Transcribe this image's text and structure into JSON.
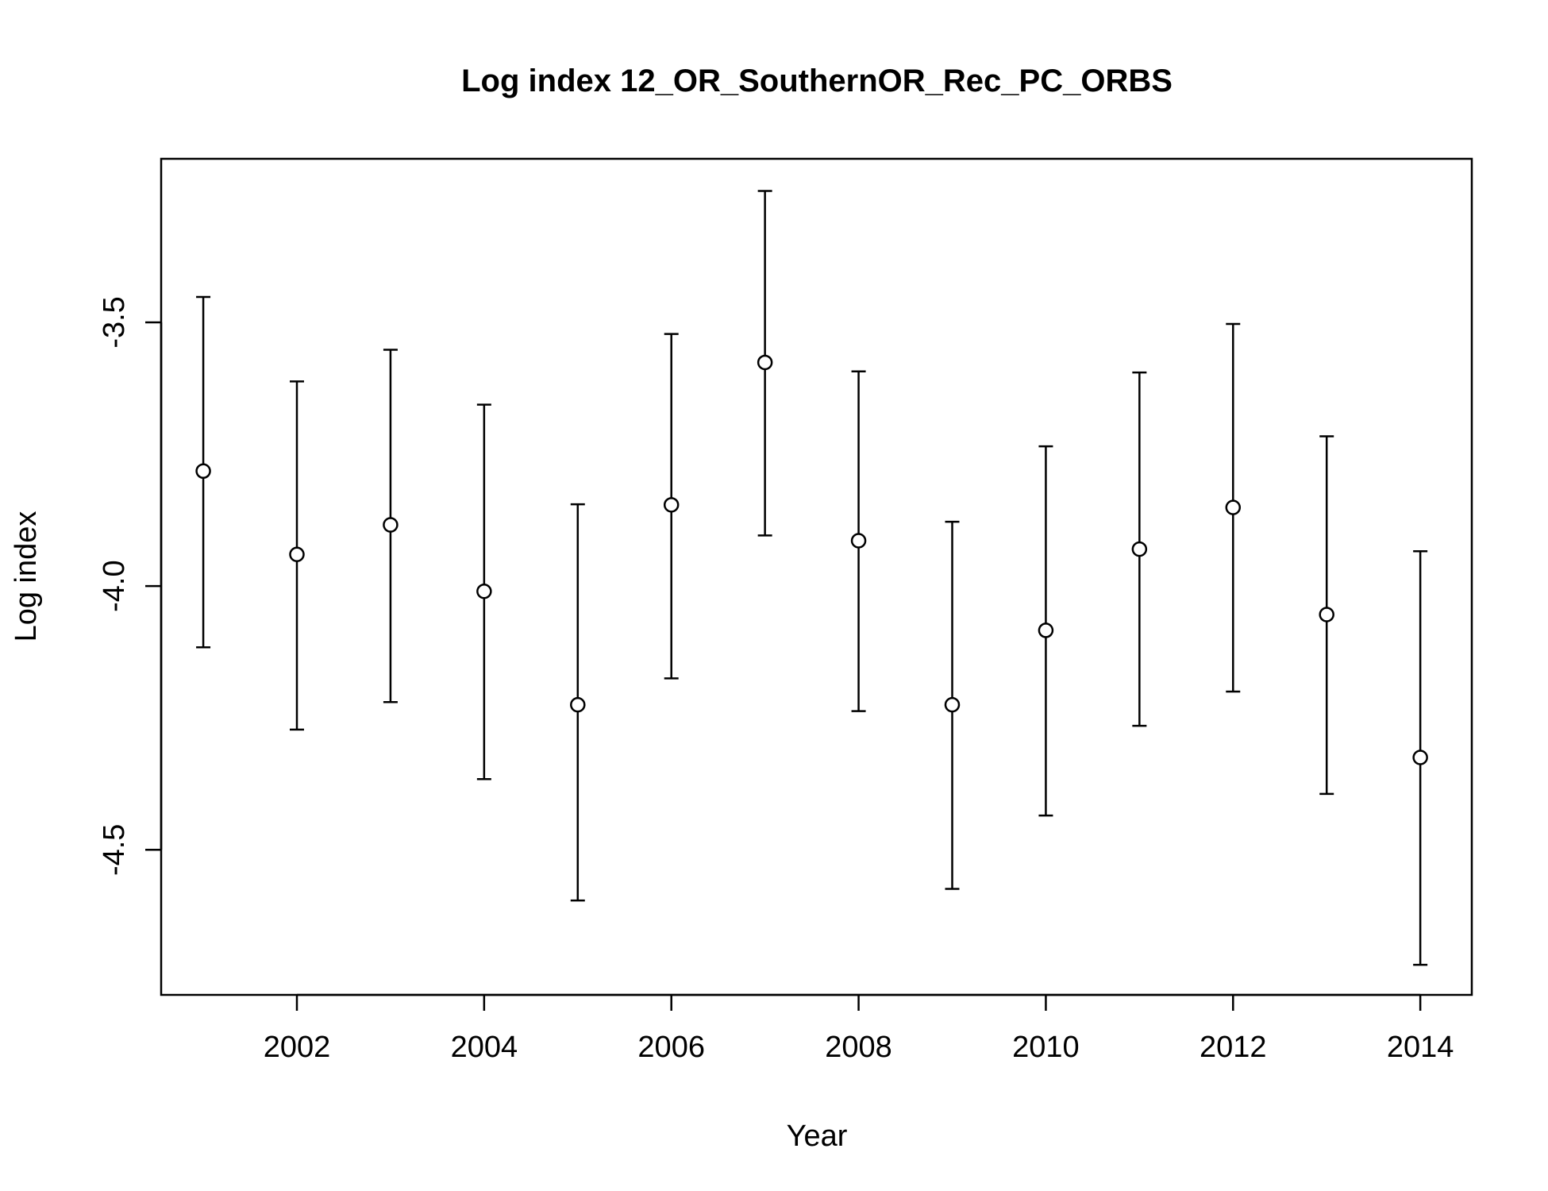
{
  "chart_data": {
    "type": "scatter",
    "title": "Log index 12_OR_SouthernOR_Rec_PC_ORBS",
    "xlabel": "Year",
    "ylabel": "Log index",
    "xlim": [
      2000.55,
      2014.55
    ],
    "ylim": [
      -4.775,
      -3.19
    ],
    "xticks": [
      2002,
      2004,
      2006,
      2008,
      2010,
      2012,
      2014
    ],
    "xtick_labels": [
      "2002",
      "2004",
      "2006",
      "2008",
      "2010",
      "2012",
      "2014"
    ],
    "yticks": [
      -4.5,
      -4.0,
      -3.5
    ],
    "ytick_labels": [
      "-4.5",
      "-4.0",
      "-3.5"
    ],
    "grid": false,
    "legend": "none",
    "marker": "open-circle",
    "error_bars": true,
    "series": [
      {
        "x": [
          2001,
          2002,
          2003,
          2004,
          2005,
          2006,
          2007,
          2008,
          2009,
          2010,
          2011,
          2012,
          2013,
          2014
        ],
        "values": [
          -3.782,
          -3.94,
          -3.884,
          -4.01,
          -4.225,
          -3.846,
          -3.576,
          -3.914,
          -4.225,
          -4.084,
          -3.93,
          -3.851,
          -4.054,
          -4.325
        ],
        "lower": [
          -4.116,
          -4.272,
          -4.22,
          -4.366,
          -4.596,
          -4.175,
          -3.904,
          -4.237,
          -4.574,
          -4.435,
          -4.265,
          -4.2,
          -4.394,
          -4.718
        ],
        "upper": [
          -3.452,
          -3.612,
          -3.552,
          -3.656,
          -3.845,
          -3.522,
          -3.251,
          -3.593,
          -3.878,
          -3.735,
          -3.595,
          -3.503,
          -3.716,
          -3.934
        ]
      }
    ]
  }
}
